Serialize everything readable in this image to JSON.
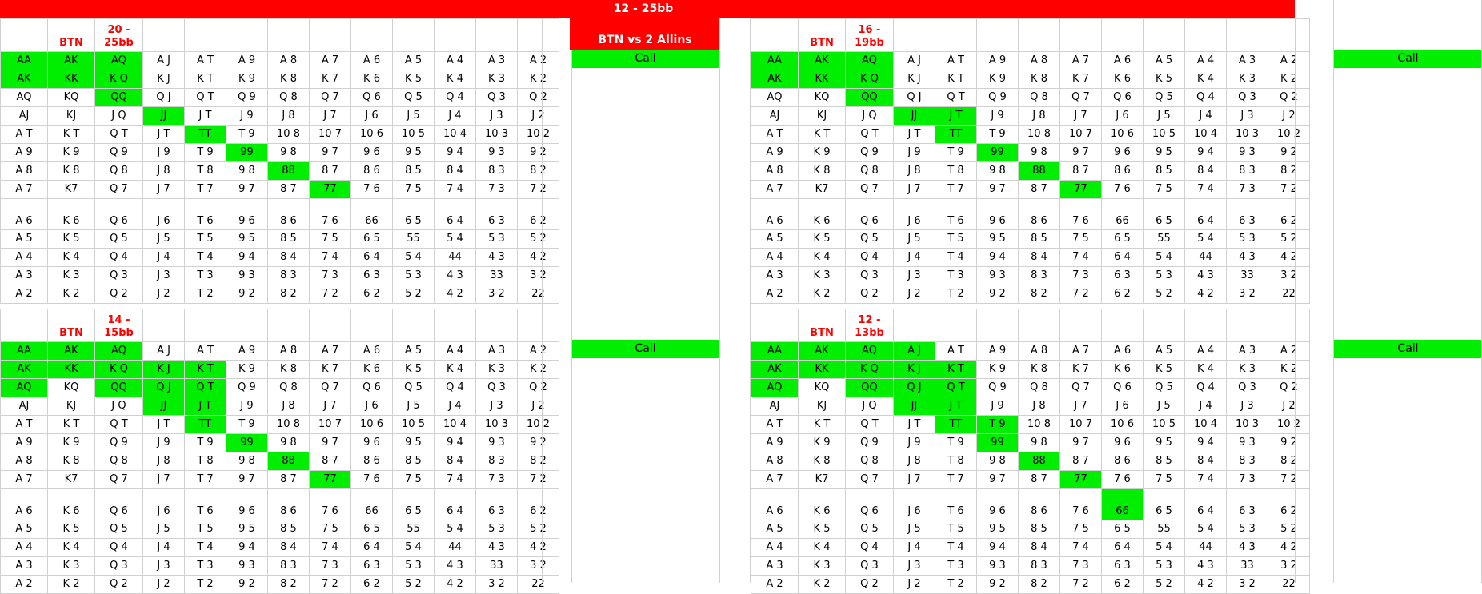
{
  "header": {
    "title": "12 - 25bb",
    "subtitle": "BTN vs 2 Allins"
  },
  "labels": {
    "btn": "BTN",
    "call": "Call"
  },
  "grid": [
    [
      "AA",
      "AK",
      "AQ",
      "A J",
      "A T",
      "A 9",
      "A 8",
      "A 7",
      "A 6",
      "A 5",
      "A 4",
      "A 3",
      "A 2"
    ],
    [
      "AK",
      "KK",
      "K Q",
      "K J",
      "K T",
      "K 9",
      "K 8",
      "K 7",
      "K 6",
      "K 5",
      "K 4",
      "K 3",
      "K 2"
    ],
    [
      "AQ",
      "KQ",
      "QQ",
      "Q J",
      "Q T",
      "Q 9",
      "Q 8",
      "Q 7",
      "Q 6",
      "Q 5",
      "Q 4",
      "Q 3",
      "Q 2"
    ],
    [
      "AJ",
      "KJ",
      "J Q",
      "JJ",
      "J T",
      "J 9",
      "J 8",
      "J 7",
      "J 6",
      "J 5",
      "J 4",
      "J 3",
      "J 2"
    ],
    [
      "A T",
      "K T",
      "Q T",
      "J T",
      "TT",
      "T 9",
      "10 8",
      "10 7",
      "10 6",
      "10 5",
      "10 4",
      "10 3",
      "10 2"
    ],
    [
      "A 9",
      "K 9",
      "Q 9",
      "J 9",
      "T 9",
      "99",
      "9 8",
      "9 7",
      "9 6",
      "9 5",
      "9 4",
      "9 3",
      "9 2"
    ],
    [
      "A 8",
      "K 8",
      "Q 8",
      "J 8",
      "T 8",
      "9 8",
      "88",
      "8 7",
      "8 6",
      "8 5",
      "8 4",
      "8 3",
      "8 2"
    ],
    [
      "A 7",
      "K7",
      "Q 7",
      "J 7",
      "T 7",
      "9 7",
      "8 7",
      "77",
      "7 6",
      "7 5",
      "7 4",
      "7 3",
      "7 2"
    ],
    [
      "A 6",
      "K 6",
      "Q 6",
      "J 6",
      "T 6",
      "9 6",
      "8 6",
      "7 6",
      "66",
      "6 5",
      "6 4",
      "6 3",
      "6 2"
    ],
    [
      "A 5",
      "K 5",
      "Q 5",
      "J 5",
      "T 5",
      "9 5",
      "8 5",
      "7 5",
      "6 5",
      "55",
      "5 4",
      "5 3",
      "5 2"
    ],
    [
      "A 4",
      "K 4",
      "Q 4",
      "J 4",
      "T 4",
      "9 4",
      "8 4",
      "7 4",
      "6 4",
      "5 4",
      "44",
      "4 3",
      "4 2"
    ],
    [
      "A 3",
      "K 3",
      "Q 3",
      "J 3",
      "T 3",
      "9 3",
      "8 3",
      "7 3",
      "6 3",
      "5 3",
      "4 3",
      "33",
      "3 2"
    ],
    [
      "A 2",
      "K 2",
      "Q 2",
      "J 2",
      "T 2",
      "9 2",
      "8 2",
      "7 2",
      "6 2",
      "5 2",
      "4 2",
      "3 2",
      "22"
    ]
  ],
  "panels": [
    {
      "range": "20 - 25bb",
      "highlight": [
        [
          0,
          0
        ],
        [
          0,
          1
        ],
        [
          0,
          2
        ],
        [
          1,
          0
        ],
        [
          1,
          1
        ],
        [
          1,
          2
        ],
        [
          2,
          2
        ],
        [
          3,
          3
        ],
        [
          4,
          4
        ],
        [
          5,
          5
        ],
        [
          6,
          6
        ],
        [
          7,
          7
        ]
      ]
    },
    {
      "range": "16 - 19bb",
      "highlight": [
        [
          0,
          0
        ],
        [
          0,
          1
        ],
        [
          0,
          2
        ],
        [
          1,
          0
        ],
        [
          1,
          1
        ],
        [
          1,
          2
        ],
        [
          2,
          2
        ],
        [
          3,
          3
        ],
        [
          3,
          4
        ],
        [
          4,
          4
        ],
        [
          5,
          5
        ],
        [
          6,
          6
        ],
        [
          7,
          7
        ]
      ]
    },
    {
      "range": "14 - 15bb",
      "highlight": [
        [
          0,
          0
        ],
        [
          0,
          1
        ],
        [
          0,
          2
        ],
        [
          1,
          0
        ],
        [
          1,
          1
        ],
        [
          1,
          2
        ],
        [
          1,
          3
        ],
        [
          1,
          4
        ],
        [
          2,
          0
        ],
        [
          2,
          2
        ],
        [
          2,
          3
        ],
        [
          2,
          4
        ],
        [
          3,
          3
        ],
        [
          3,
          4
        ],
        [
          4,
          4
        ],
        [
          5,
          5
        ],
        [
          6,
          6
        ],
        [
          7,
          7
        ]
      ]
    },
    {
      "range": "12 - 13bb",
      "highlight": [
        [
          0,
          0
        ],
        [
          0,
          1
        ],
        [
          0,
          2
        ],
        [
          0,
          3
        ],
        [
          1,
          0
        ],
        [
          1,
          1
        ],
        [
          1,
          2
        ],
        [
          1,
          3
        ],
        [
          1,
          4
        ],
        [
          2,
          0
        ],
        [
          2,
          2
        ],
        [
          2,
          3
        ],
        [
          2,
          4
        ],
        [
          3,
          3
        ],
        [
          3,
          4
        ],
        [
          4,
          4
        ],
        [
          4,
          5
        ],
        [
          5,
          5
        ],
        [
          6,
          6
        ],
        [
          7,
          7
        ],
        [
          8,
          8
        ]
      ]
    }
  ],
  "colors": {
    "red": "#ff0000",
    "green": "#00ee00"
  }
}
